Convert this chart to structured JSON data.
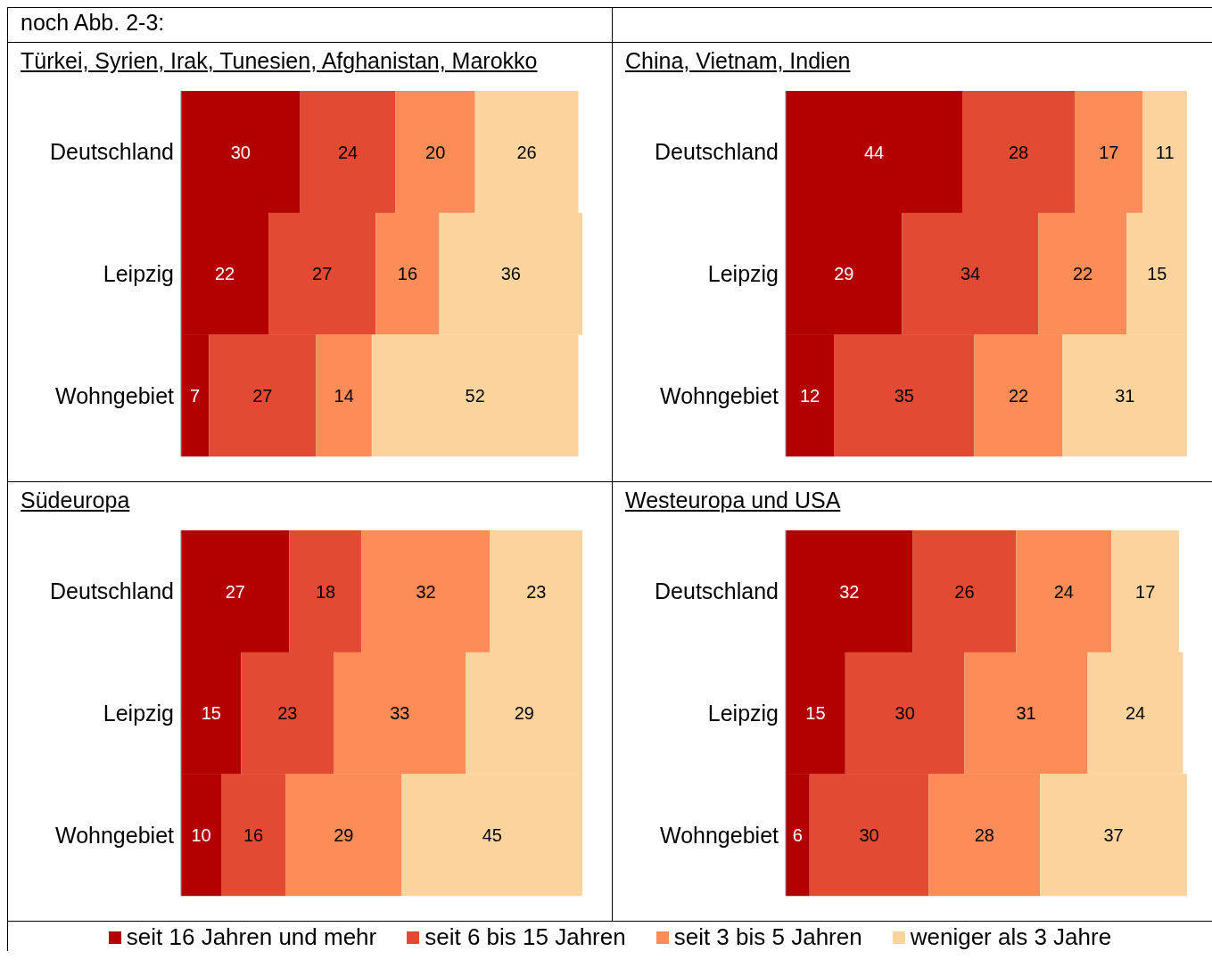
{
  "chart_data": [
    {
      "type": "bar",
      "title": "Türkei, Syrien, Irak, Tunesien, Afghanistan, Marokko",
      "annotations": [
        "noch Abb. 2-3:"
      ],
      "orientation": "horizontal",
      "stacked": true,
      "data_labels": true,
      "tick_labels": "y",
      "categories": [
        "Deutschland",
        "Leipzig",
        "Wohngebiet"
      ],
      "series": [
        {
          "color": "#b30000",
          "values": [
            30,
            22,
            7
          ]
        },
        {
          "color": "#e34a33",
          "values": [
            24,
            27,
            27
          ]
        },
        {
          "color": "#fc8d59",
          "values": [
            20,
            16,
            14
          ]
        },
        {
          "color": "#fdd49e",
          "values": [
            26,
            36,
            52
          ]
        }
      ]
    },
    {
      "type": "bar",
      "title": "China, Vietnam, Indien",
      "orientation": "horizontal",
      "stacked": true,
      "data_labels": true,
      "tick_labels": "y",
      "categories": [
        "Deutschland",
        "Leipzig",
        "Wohngebiet"
      ],
      "series": [
        {
          "color": "#b30000",
          "values": [
            44,
            29,
            12
          ]
        },
        {
          "color": "#e34a33",
          "values": [
            28,
            34,
            35
          ]
        },
        {
          "color": "#fc8d59",
          "values": [
            17,
            22,
            22
          ]
        },
        {
          "color": "#fdd49e",
          "values": [
            11,
            15,
            31
          ]
        }
      ]
    },
    {
      "type": "bar",
      "title": "Südeuropa",
      "orientation": "horizontal",
      "stacked": true,
      "data_labels": true,
      "tick_labels": "y",
      "categories": [
        "Deutschland",
        "Leipzig",
        "Wohngebiet"
      ],
      "series": [
        {
          "color": "#b30000",
          "values": [
            27,
            15,
            10
          ]
        },
        {
          "color": "#e34a33",
          "values": [
            18,
            23,
            16
          ]
        },
        {
          "color": "#fc8d59",
          "values": [
            32,
            33,
            29
          ]
        },
        {
          "color": "#fdd49e",
          "values": [
            23,
            29,
            45
          ]
        }
      ]
    },
    {
      "type": "bar",
      "title": "Westeuropa und USA",
      "orientation": "horizontal",
      "stacked": true,
      "data_labels": true,
      "tick_labels": "y",
      "legend": "bottom",
      "categories": [
        "Deutschland",
        "Leipzig",
        "Wohngebiet"
      ],
      "series": [
        {
          "name": "seit 16 Jahren und mehr",
          "color": "#b30000",
          "values": [
            32,
            15,
            6
          ]
        },
        {
          "name": "seit 6 bis 15 Jahren",
          "color": "#e34a33",
          "values": [
            26,
            30,
            30
          ]
        },
        {
          "name": "seit 3 bis 5 Jahren",
          "color": "#fc8d59",
          "values": [
            24,
            31,
            28
          ]
        },
        {
          "name": "weniger als 3 Jahre",
          "color": "#fdd49e",
          "values": [
            17,
            24,
            37
          ]
        }
      ]
    }
  ]
}
